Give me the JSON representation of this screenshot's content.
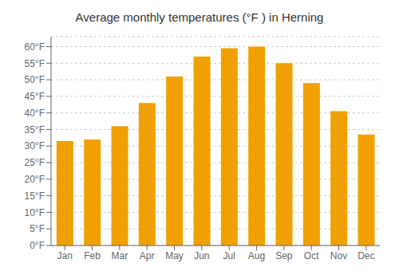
{
  "chart_data": {
    "type": "bar",
    "title": "Average monthly temperatures (°F ) in Herning",
    "categories": [
      "Jan",
      "Feb",
      "Mar",
      "Apr",
      "May",
      "Jun",
      "Jul",
      "Aug",
      "Sep",
      "Oct",
      "Nov",
      "Dec"
    ],
    "values": [
      31.5,
      32.0,
      36.0,
      43.0,
      51.0,
      57.0,
      59.5,
      60.0,
      55.0,
      49.0,
      40.5,
      33.5
    ],
    "color": "#F0A000",
    "ylim": [
      0,
      63
    ],
    "yticks": [
      {
        "value": 0,
        "label": "0°F"
      },
      {
        "value": 5,
        "label": "5°F"
      },
      {
        "value": 10,
        "label": "10°F"
      },
      {
        "value": 15,
        "label": "15°F"
      },
      {
        "value": 20,
        "label": "20°F"
      },
      {
        "value": 25,
        "label": "25°F"
      },
      {
        "value": 30,
        "label": "30°F"
      },
      {
        "value": 35,
        "label": "35°F"
      },
      {
        "value": 40,
        "label": "40°F"
      },
      {
        "value": 45,
        "label": "45°F"
      },
      {
        "value": 50,
        "label": "50°F"
      },
      {
        "value": 55,
        "label": "55°F"
      },
      {
        "value": 60,
        "label": "60°F"
      }
    ],
    "grid": true
  }
}
